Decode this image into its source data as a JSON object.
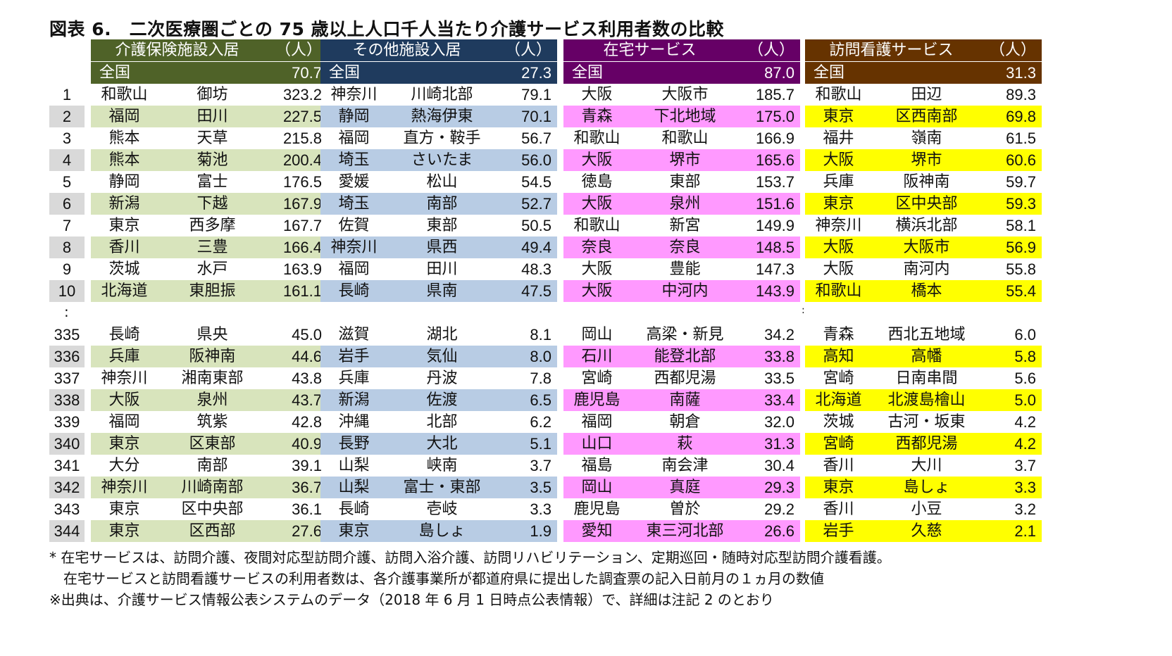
{
  "title": "図表 6.　二次医療圏ごとの 75 歳以上人口千人当たり介護サービス利用者数の比較",
  "ranks_top": [
    "1",
    "2",
    "3",
    "4",
    "5",
    "6",
    "7",
    "8",
    "9",
    "10"
  ],
  "ranks_bottom": [
    "335",
    "336",
    "337",
    "338",
    "339",
    "340",
    "341",
    "342",
    "343",
    "344"
  ],
  "ellipsis": ":",
  "colors": {
    "rank_shade": "#d9d9d9",
    "panels": [
      {
        "header": "#4f6228",
        "shade": "#d8e4bc"
      },
      {
        "header": "#1f3b5e",
        "shade": "#b8cce4"
      },
      {
        "header": "#660066",
        "shade": "#ff99ff"
      },
      {
        "header": "#663300",
        "shade": "#ffff00"
      }
    ]
  },
  "panels": [
    {
      "name": "介護保険施設入居",
      "unit": "（人）",
      "national_label": "全国",
      "national_value": "70.7",
      "top": [
        {
          "pref": "和歌山",
          "area": "御坊",
          "value": "323.2"
        },
        {
          "pref": "福岡",
          "area": "田川",
          "value": "227.5"
        },
        {
          "pref": "熊本",
          "area": "天草",
          "value": "215.8"
        },
        {
          "pref": "熊本",
          "area": "菊池",
          "value": "200.4"
        },
        {
          "pref": "静岡",
          "area": "富士",
          "value": "176.5"
        },
        {
          "pref": "新潟",
          "area": "下越",
          "value": "167.9"
        },
        {
          "pref": "東京",
          "area": "西多摩",
          "value": "167.7"
        },
        {
          "pref": "香川",
          "area": "三豊",
          "value": "166.4"
        },
        {
          "pref": "茨城",
          "area": "水戸",
          "value": "163.9"
        },
        {
          "pref": "北海道",
          "area": "東胆振",
          "value": "161.1"
        }
      ],
      "bottom": [
        {
          "pref": "長崎",
          "area": "県央",
          "value": "45.0"
        },
        {
          "pref": "兵庫",
          "area": "阪神南",
          "value": "44.6"
        },
        {
          "pref": "神奈川",
          "area": "湘南東部",
          "value": "43.8"
        },
        {
          "pref": "大阪",
          "area": "泉州",
          "value": "43.7"
        },
        {
          "pref": "福岡",
          "area": "筑紫",
          "value": "42.8"
        },
        {
          "pref": "東京",
          "area": "区東部",
          "value": "40.9"
        },
        {
          "pref": "大分",
          "area": "南部",
          "value": "39.1"
        },
        {
          "pref": "神奈川",
          "area": "川崎南部",
          "value": "36.7"
        },
        {
          "pref": "東京",
          "area": "区中央部",
          "value": "36.1"
        },
        {
          "pref": "東京",
          "area": "区西部",
          "value": "27.6"
        }
      ]
    },
    {
      "name": "その他施設入居",
      "unit": "（人）",
      "national_label": "全国",
      "national_value": "27.3",
      "top": [
        {
          "pref": "神奈川",
          "area": "川崎北部",
          "value": "79.1"
        },
        {
          "pref": "静岡",
          "area": "熱海伊東",
          "value": "70.1"
        },
        {
          "pref": "福岡",
          "area": "直方・鞍手",
          "value": "56.7"
        },
        {
          "pref": "埼玉",
          "area": "さいたま",
          "value": "56.0"
        },
        {
          "pref": "愛媛",
          "area": "松山",
          "value": "54.5"
        },
        {
          "pref": "埼玉",
          "area": "南部",
          "value": "52.7"
        },
        {
          "pref": "佐賀",
          "area": "東部",
          "value": "50.5"
        },
        {
          "pref": "神奈川",
          "area": "県西",
          "value": "49.4"
        },
        {
          "pref": "福岡",
          "area": "田川",
          "value": "48.3"
        },
        {
          "pref": "長崎",
          "area": "県南",
          "value": "47.5"
        }
      ],
      "bottom": [
        {
          "pref": "滋賀",
          "area": "湖北",
          "value": "8.1"
        },
        {
          "pref": "岩手",
          "area": "気仙",
          "value": "8.0"
        },
        {
          "pref": "兵庫",
          "area": "丹波",
          "value": "7.8"
        },
        {
          "pref": "新潟",
          "area": "佐渡",
          "value": "6.5"
        },
        {
          "pref": "沖縄",
          "area": "北部",
          "value": "6.2"
        },
        {
          "pref": "長野",
          "area": "大北",
          "value": "5.1"
        },
        {
          "pref": "山梨",
          "area": "峡南",
          "value": "3.7"
        },
        {
          "pref": "山梨",
          "area": "富士・東部",
          "value": "3.5"
        },
        {
          "pref": "長崎",
          "area": "壱岐",
          "value": "3.3"
        },
        {
          "pref": "東京",
          "area": "島しょ",
          "value": "1.9"
        }
      ]
    },
    {
      "name": "在宅サービス",
      "unit": "（人）",
      "national_label": "全国",
      "national_value": "87.0",
      "top": [
        {
          "pref": "大阪",
          "area": "大阪市",
          "value": "185.7"
        },
        {
          "pref": "青森",
          "area": "下北地域",
          "value": "175.0"
        },
        {
          "pref": "和歌山",
          "area": "和歌山",
          "value": "166.9"
        },
        {
          "pref": "大阪",
          "area": "堺市",
          "value": "165.6"
        },
        {
          "pref": "徳島",
          "area": "東部",
          "value": "153.7"
        },
        {
          "pref": "大阪",
          "area": "泉州",
          "value": "151.6"
        },
        {
          "pref": "和歌山",
          "area": "新宮",
          "value": "149.9"
        },
        {
          "pref": "奈良",
          "area": "奈良",
          "value": "148.5"
        },
        {
          "pref": "大阪",
          "area": "豊能",
          "value": "147.3"
        },
        {
          "pref": "大阪",
          "area": "中河内",
          "value": "143.9"
        }
      ],
      "bottom": [
        {
          "pref": "岡山",
          "area": "高梁・新見",
          "value": "34.2"
        },
        {
          "pref": "石川",
          "area": "能登北部",
          "value": "33.8"
        },
        {
          "pref": "宮崎",
          "area": "西都児湯",
          "value": "33.5"
        },
        {
          "pref": "鹿児島",
          "area": "南薩",
          "value": "33.4"
        },
        {
          "pref": "福岡",
          "area": "朝倉",
          "value": "32.0"
        },
        {
          "pref": "山口",
          "area": "萩",
          "value": "31.3"
        },
        {
          "pref": "福島",
          "area": "南会津",
          "value": "30.4"
        },
        {
          "pref": "岡山",
          "area": "真庭",
          "value": "29.3"
        },
        {
          "pref": "鹿児島",
          "area": "曽於",
          "value": "29.2"
        },
        {
          "pref": "愛知",
          "area": "東三河北部",
          "value": "26.6"
        }
      ]
    },
    {
      "name": "訪問看護サービス",
      "unit": "（人）",
      "national_label": "全国",
      "national_value": "31.3",
      "top": [
        {
          "pref": "和歌山",
          "area": "田辺",
          "value": "89.3"
        },
        {
          "pref": "東京",
          "area": "区西南部",
          "value": "69.8"
        },
        {
          "pref": "福井",
          "area": "嶺南",
          "value": "61.5"
        },
        {
          "pref": "大阪",
          "area": "堺市",
          "value": "60.6"
        },
        {
          "pref": "兵庫",
          "area": "阪神南",
          "value": "59.7"
        },
        {
          "pref": "東京",
          "area": "区中央部",
          "value": "59.3"
        },
        {
          "pref": "神奈川",
          "area": "横浜北部",
          "value": "58.1"
        },
        {
          "pref": "大阪",
          "area": "大阪市",
          "value": "56.9"
        },
        {
          "pref": "大阪",
          "area": "南河内",
          "value": "55.8"
        },
        {
          "pref": "和歌山",
          "area": "橋本",
          "value": "55.4"
        }
      ],
      "bottom": [
        {
          "pref": "青森",
          "area": "西北五地域",
          "value": "6.0"
        },
        {
          "pref": "高知",
          "area": "高幡",
          "value": "5.8"
        },
        {
          "pref": "宮崎",
          "area": "日南串間",
          "value": "5.6"
        },
        {
          "pref": "北海道",
          "area": "北渡島檜山",
          "value": "5.0"
        },
        {
          "pref": "茨城",
          "area": "古河・坂東",
          "value": "4.2"
        },
        {
          "pref": "宮崎",
          "area": "西都児湯",
          "value": "4.2"
        },
        {
          "pref": "香川",
          "area": "大川",
          "value": "3.7"
        },
        {
          "pref": "東京",
          "area": "島しょ",
          "value": "3.3"
        },
        {
          "pref": "香川",
          "area": "小豆",
          "value": "3.2"
        },
        {
          "pref": "岩手",
          "area": "久慈",
          "value": "2.1"
        }
      ]
    }
  ],
  "notes": [
    "* 在宅サービスは、訪問介護、夜間対応型訪問介護、訪問入浴介護、訪問リハビリテーション、定期巡回・随時対応型訪問介護看護。",
    "　在宅サービスと訪問看護サービスの利用者数は、各介護事業所が都道府県に提出した調査票の記入日前月の１ヵ月の数値",
    "※出典は、介護サービス情報公表システムのデータ（2018 年 6 月 1 日時点公表情報）で、詳細は注記 2 のとおり"
  ]
}
